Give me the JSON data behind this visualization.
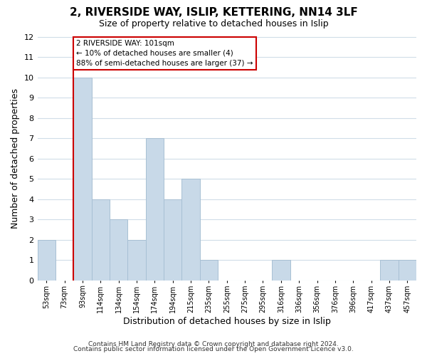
{
  "title": "2, RIVERSIDE WAY, ISLIP, KETTERING, NN14 3LF",
  "subtitle": "Size of property relative to detached houses in Islip",
  "xlabel": "Distribution of detached houses by size in Islip",
  "ylabel": "Number of detached properties",
  "bin_labels": [
    "53sqm",
    "73sqm",
    "93sqm",
    "114sqm",
    "134sqm",
    "154sqm",
    "174sqm",
    "194sqm",
    "215sqm",
    "235sqm",
    "255sqm",
    "275sqm",
    "295sqm",
    "316sqm",
    "336sqm",
    "356sqm",
    "376sqm",
    "396sqm",
    "417sqm",
    "437sqm",
    "457sqm"
  ],
  "bar_heights": [
    2,
    0,
    10,
    4,
    3,
    2,
    7,
    4,
    5,
    1,
    0,
    0,
    0,
    1,
    0,
    0,
    0,
    0,
    0,
    1,
    1
  ],
  "bar_color": "#c8d9e8",
  "bar_edge_color": "#a8c0d4",
  "vline_color": "#cc0000",
  "vline_x_index": 2,
  "ylim": [
    0,
    12
  ],
  "yticks": [
    0,
    1,
    2,
    3,
    4,
    5,
    6,
    7,
    8,
    9,
    10,
    11,
    12
  ],
  "annotation_line1": "2 RIVERSIDE WAY: 101sqm",
  "annotation_line2": "← 10% of detached houses are smaller (4)",
  "annotation_line3": "88% of semi-detached houses are larger (37) →",
  "annotation_box_color": "#ffffff",
  "annotation_box_edge_color": "#cc0000",
  "footer1": "Contains HM Land Registry data © Crown copyright and database right 2024.",
  "footer2": "Contains public sector information licensed under the Open Government Licence v3.0.",
  "background_color": "#ffffff",
  "grid_color": "#d0dde8"
}
